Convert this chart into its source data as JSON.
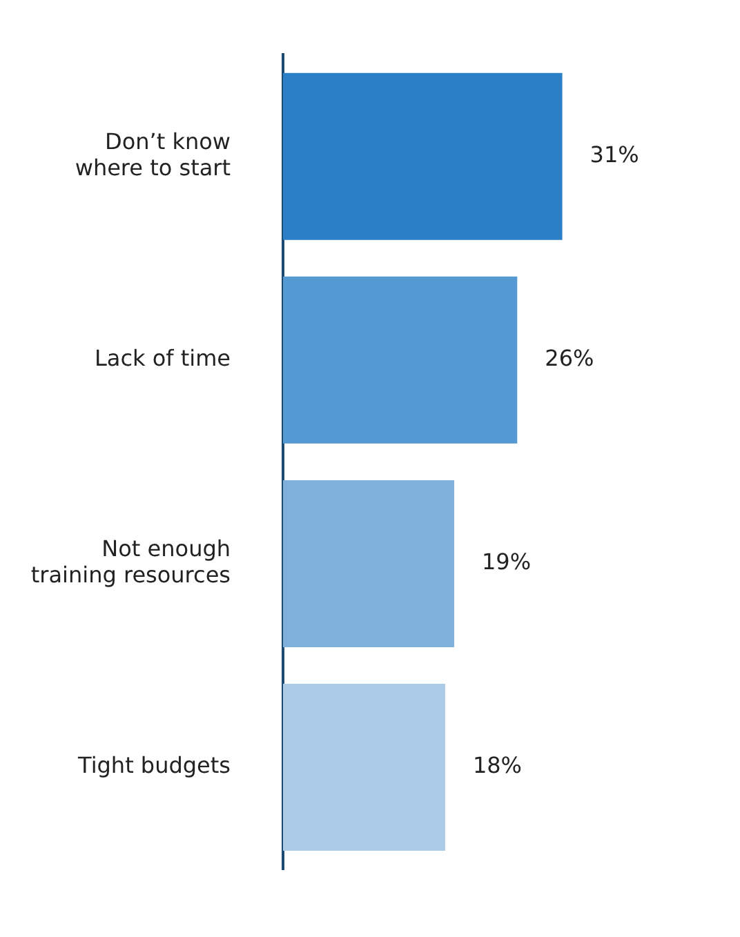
{
  "chart_data": {
    "type": "bar",
    "orientation": "horizontal",
    "categories": [
      "Don’t know\nwhere to start",
      "Lack of time",
      "Not enough\ntraining resources",
      "Tight budgets"
    ],
    "values": [
      31,
      26,
      19,
      18
    ],
    "colors": [
      "#2a7fc6",
      "#5599d3",
      "#7fb0dc",
      "#abcbe7"
    ],
    "value_labels": [
      "31%",
      "26%",
      "19%",
      "18%"
    ],
    "tick_labels": "y"
  }
}
